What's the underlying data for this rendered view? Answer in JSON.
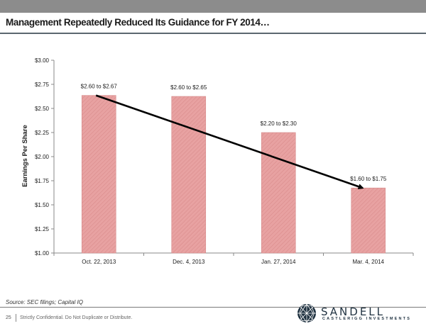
{
  "header": {
    "title": "Management Repeatedly Reduced Its Guidance for FY 2014…"
  },
  "chart_data": {
    "type": "bar",
    "categories": [
      "Oct. 22, 2013",
      "Dec. 4, 2013",
      "Jan. 27, 2014",
      "Mar. 4, 2014"
    ],
    "values": [
      2.635,
      2.625,
      2.25,
      1.675
    ],
    "data_labels": [
      "$2.60 to $2.67",
      "$2.60 to $2.65",
      "$2.20 to $2.30",
      "$1.60 to $1.75"
    ],
    "xlabel": "",
    "ylabel": "Earnings Per Share",
    "ylim": [
      1.0,
      3.0
    ],
    "yticks": [
      1.0,
      1.25,
      1.5,
      1.75,
      2.0,
      2.25,
      2.5,
      2.75,
      3.0
    ],
    "ytick_labels": [
      "$1.00",
      "$1.25",
      "$1.50",
      "$1.75",
      "$2.00",
      "$2.25",
      "$2.50",
      "$2.75",
      "$3.00"
    ],
    "trend_arrow": {
      "from": {
        "category": "Oct. 22, 2013",
        "value": 2.635
      },
      "to": {
        "category": "Mar. 4, 2014",
        "value": 1.675
      }
    },
    "grid": false,
    "bar_color": "#e8a2a2",
    "bar_hatch_color": "#d98c8c",
    "arrow_color": "#000000"
  },
  "footer": {
    "source": "Source: SEC filings; Capital IQ",
    "page_number": "25",
    "confidential": "Strictly Confidential. Do Not Duplicate or Distribute."
  },
  "logo": {
    "name": "SANDELL",
    "tagline": "CASTLERIGG INVESTMENTS"
  }
}
